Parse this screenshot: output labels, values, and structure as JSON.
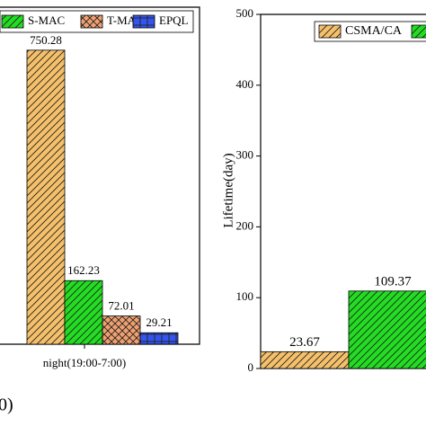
{
  "chart_data": [
    {
      "type": "bar",
      "categories": [
        "night(19:00-7:00)"
      ],
      "ylim": [
        0,
        860
      ],
      "series": [
        {
          "color": "#f5c06a",
          "pattern": "diagonal",
          "values": [
            750.28
          ]
        },
        {
          "name": "S-MAC",
          "color": "#22dd22",
          "pattern": "diagonal",
          "values": [
            162.23
          ]
        },
        {
          "name": "T-MAC",
          "color": "#f0a070",
          "pattern": "cross",
          "values": [
            72.01
          ]
        },
        {
          "name": "EPQL",
          "color": "#3355ee",
          "pattern": "grid",
          "values": [
            29.21
          ]
        }
      ]
    },
    {
      "type": "bar",
      "ylabel": "Lifetime(day)",
      "ylim": [
        0,
        500
      ],
      "yticks": [
        0,
        100,
        200,
        300,
        400,
        500
      ],
      "series": [
        {
          "name": "CSMA/CA",
          "color": "#f5c06a",
          "pattern": "diagonal",
          "values": [
            23.67
          ]
        },
        {
          "color": "#22dd22",
          "pattern": "diagonal",
          "values": [
            109.37
          ]
        }
      ]
    }
  ],
  "caption": "0)"
}
